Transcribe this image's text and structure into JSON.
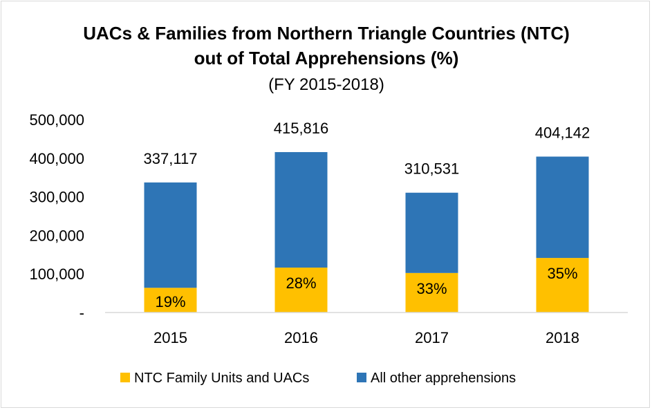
{
  "chart_data": {
    "type": "bar",
    "stacked": true,
    "title_line1": "UACs & Families from Northern Triangle Countries (NTC)",
    "title_line2": "out of Total Apprehensions (%)",
    "subtitle": "(FY 2015-2018)",
    "categories": [
      "2015",
      "2016",
      "2017",
      "2018"
    ],
    "series": [
      {
        "name": "NTC Family Units and UACs",
        "color": "#FFC000",
        "values": [
          64052,
          116428,
          102475,
          141450
        ]
      },
      {
        "name": "All other apprehensions",
        "color": "#2E75B6",
        "values": [
          273065,
          299388,
          208056,
          262692
        ]
      }
    ],
    "totals": [
      337117,
      415816,
      310531,
      404142
    ],
    "total_labels": [
      "337,117",
      "415,816",
      "310,531",
      "404,142"
    ],
    "pct_labels": [
      "19%",
      "28%",
      "33%",
      "35%"
    ],
    "ylim": [
      0,
      500000
    ],
    "yticks": [
      0,
      100000,
      200000,
      300000,
      400000,
      500000
    ],
    "ytick_labels": [
      "-",
      "100,000",
      "200,000",
      "300,000",
      "400,000",
      "500,000"
    ],
    "xlabel": "",
    "ylabel": "",
    "grid": false,
    "legend_position": "bottom"
  }
}
